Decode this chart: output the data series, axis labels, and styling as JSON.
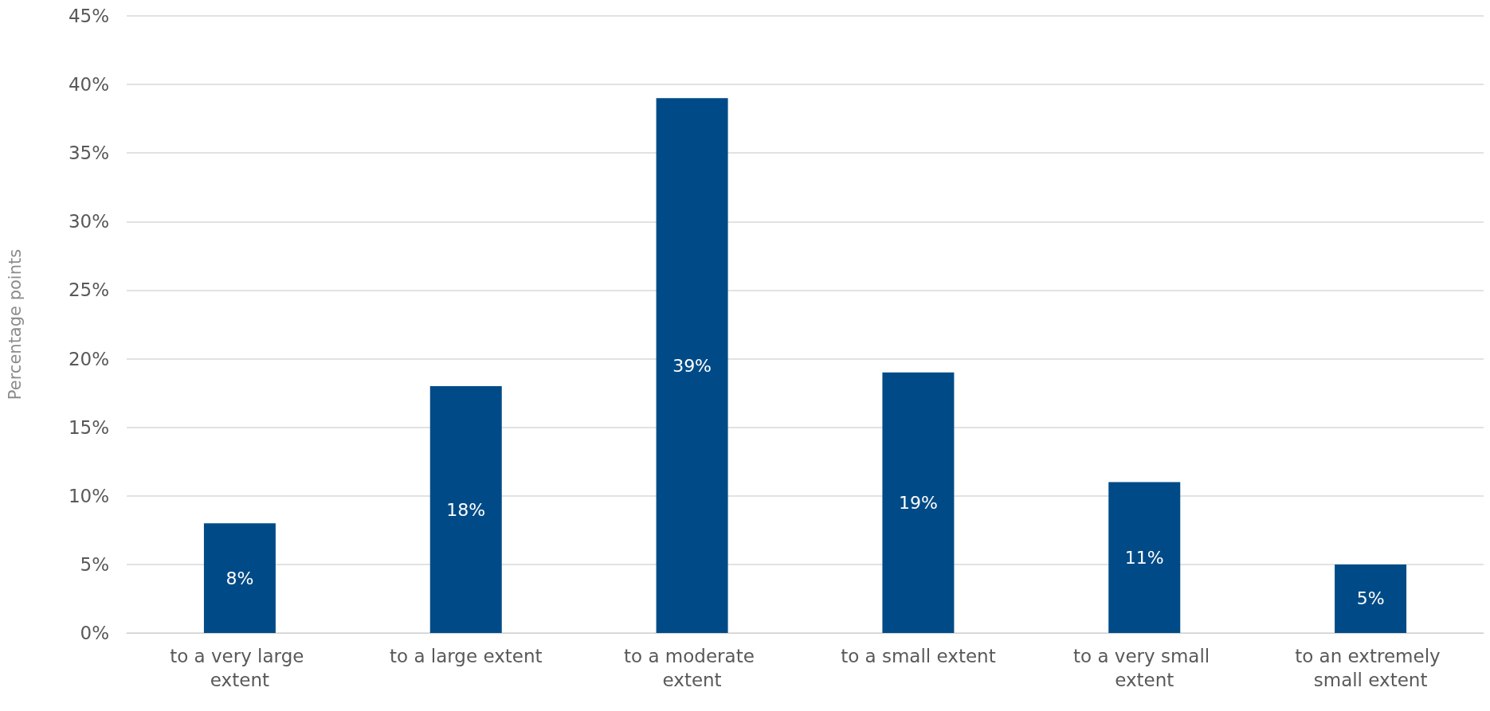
{
  "chart_data": {
    "type": "bar",
    "ylabel": "Percentage points",
    "categories": [
      "to a very large extent",
      "to a large extent",
      "to a moderate extent",
      "to a small extent",
      "to a very small extent",
      "to an extremely small extent"
    ],
    "values": [
      8,
      18,
      39,
      19,
      11,
      5
    ],
    "value_labels": [
      "8%",
      "18%",
      "39%",
      "19%",
      "11%",
      "5%"
    ],
    "color": "#004b87",
    "ylim": [
      0,
      45
    ],
    "yticks": [
      {
        "value": 0,
        "label": "0%"
      },
      {
        "value": 5,
        "label": "5%"
      },
      {
        "value": 10,
        "label": "10%"
      },
      {
        "value": 15,
        "label": "15%"
      },
      {
        "value": 20,
        "label": "20%"
      },
      {
        "value": 25,
        "label": "25%"
      },
      {
        "value": 30,
        "label": "30%"
      },
      {
        "value": 35,
        "label": "35%"
      },
      {
        "value": 40,
        "label": "40%"
      },
      {
        "value": 45,
        "label": "45%"
      }
    ],
    "grid": true
  }
}
